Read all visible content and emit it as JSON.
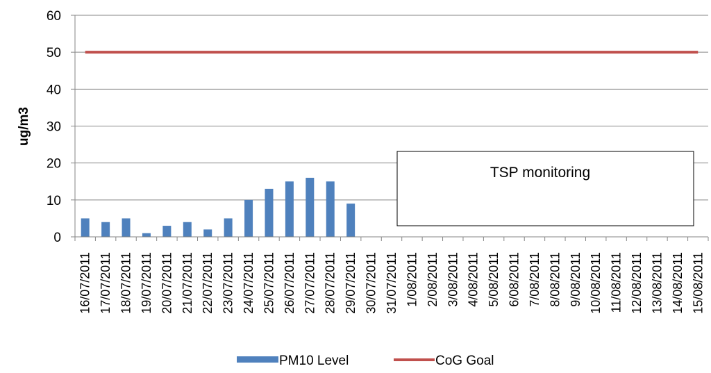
{
  "chart_data": {
    "type": "bar",
    "title": "",
    "xlabel": "",
    "ylabel": "ug/m3",
    "ylim": [
      0,
      60
    ],
    "yticks": [
      "0",
      "10",
      "20",
      "30",
      "40",
      "50",
      "60"
    ],
    "grid": true,
    "legend_position": "bottom",
    "categories": [
      "16/07/2011",
      "17/07/2011",
      "18/07/2011",
      "19/07/2011",
      "20/07/2011",
      "21/07/2011",
      "22/07/2011",
      "23/07/2011",
      "24/07/2011",
      "25/07/2011",
      "26/07/2011",
      "27/07/2011",
      "28/07/2011",
      "29/07/2011",
      "30/07/2011",
      "31/07/2011",
      "1/08/2011",
      "2/08/2011",
      "3/08/2011",
      "4/08/2011",
      "5/08/2011",
      "6/08/2011",
      "7/08/2011",
      "8/08/2011",
      "9/08/2011",
      "10/08/2011",
      "11/08/2011",
      "12/08/2011",
      "13/08/2011",
      "14/08/2011",
      "15/08/2011"
    ],
    "series": [
      {
        "name": "PM10 Level",
        "type": "bar",
        "color": "#4F81BD",
        "values": [
          5,
          4,
          5,
          1,
          3,
          4,
          2,
          5,
          10,
          13,
          15,
          16,
          15,
          9,
          null,
          null,
          null,
          null,
          null,
          null,
          null,
          null,
          null,
          null,
          null,
          null,
          null,
          null,
          null,
          null,
          null
        ]
      },
      {
        "name": "CoG Goal",
        "type": "line",
        "color": "#C0504D",
        "values": [
          50,
          50,
          50,
          50,
          50,
          50,
          50,
          50,
          50,
          50,
          50,
          50,
          50,
          50,
          50,
          50,
          50,
          50,
          50,
          50,
          50,
          50,
          50,
          50,
          50,
          50,
          50,
          50,
          50,
          50,
          50
        ]
      }
    ],
    "annotation": "TSP monitoring"
  }
}
